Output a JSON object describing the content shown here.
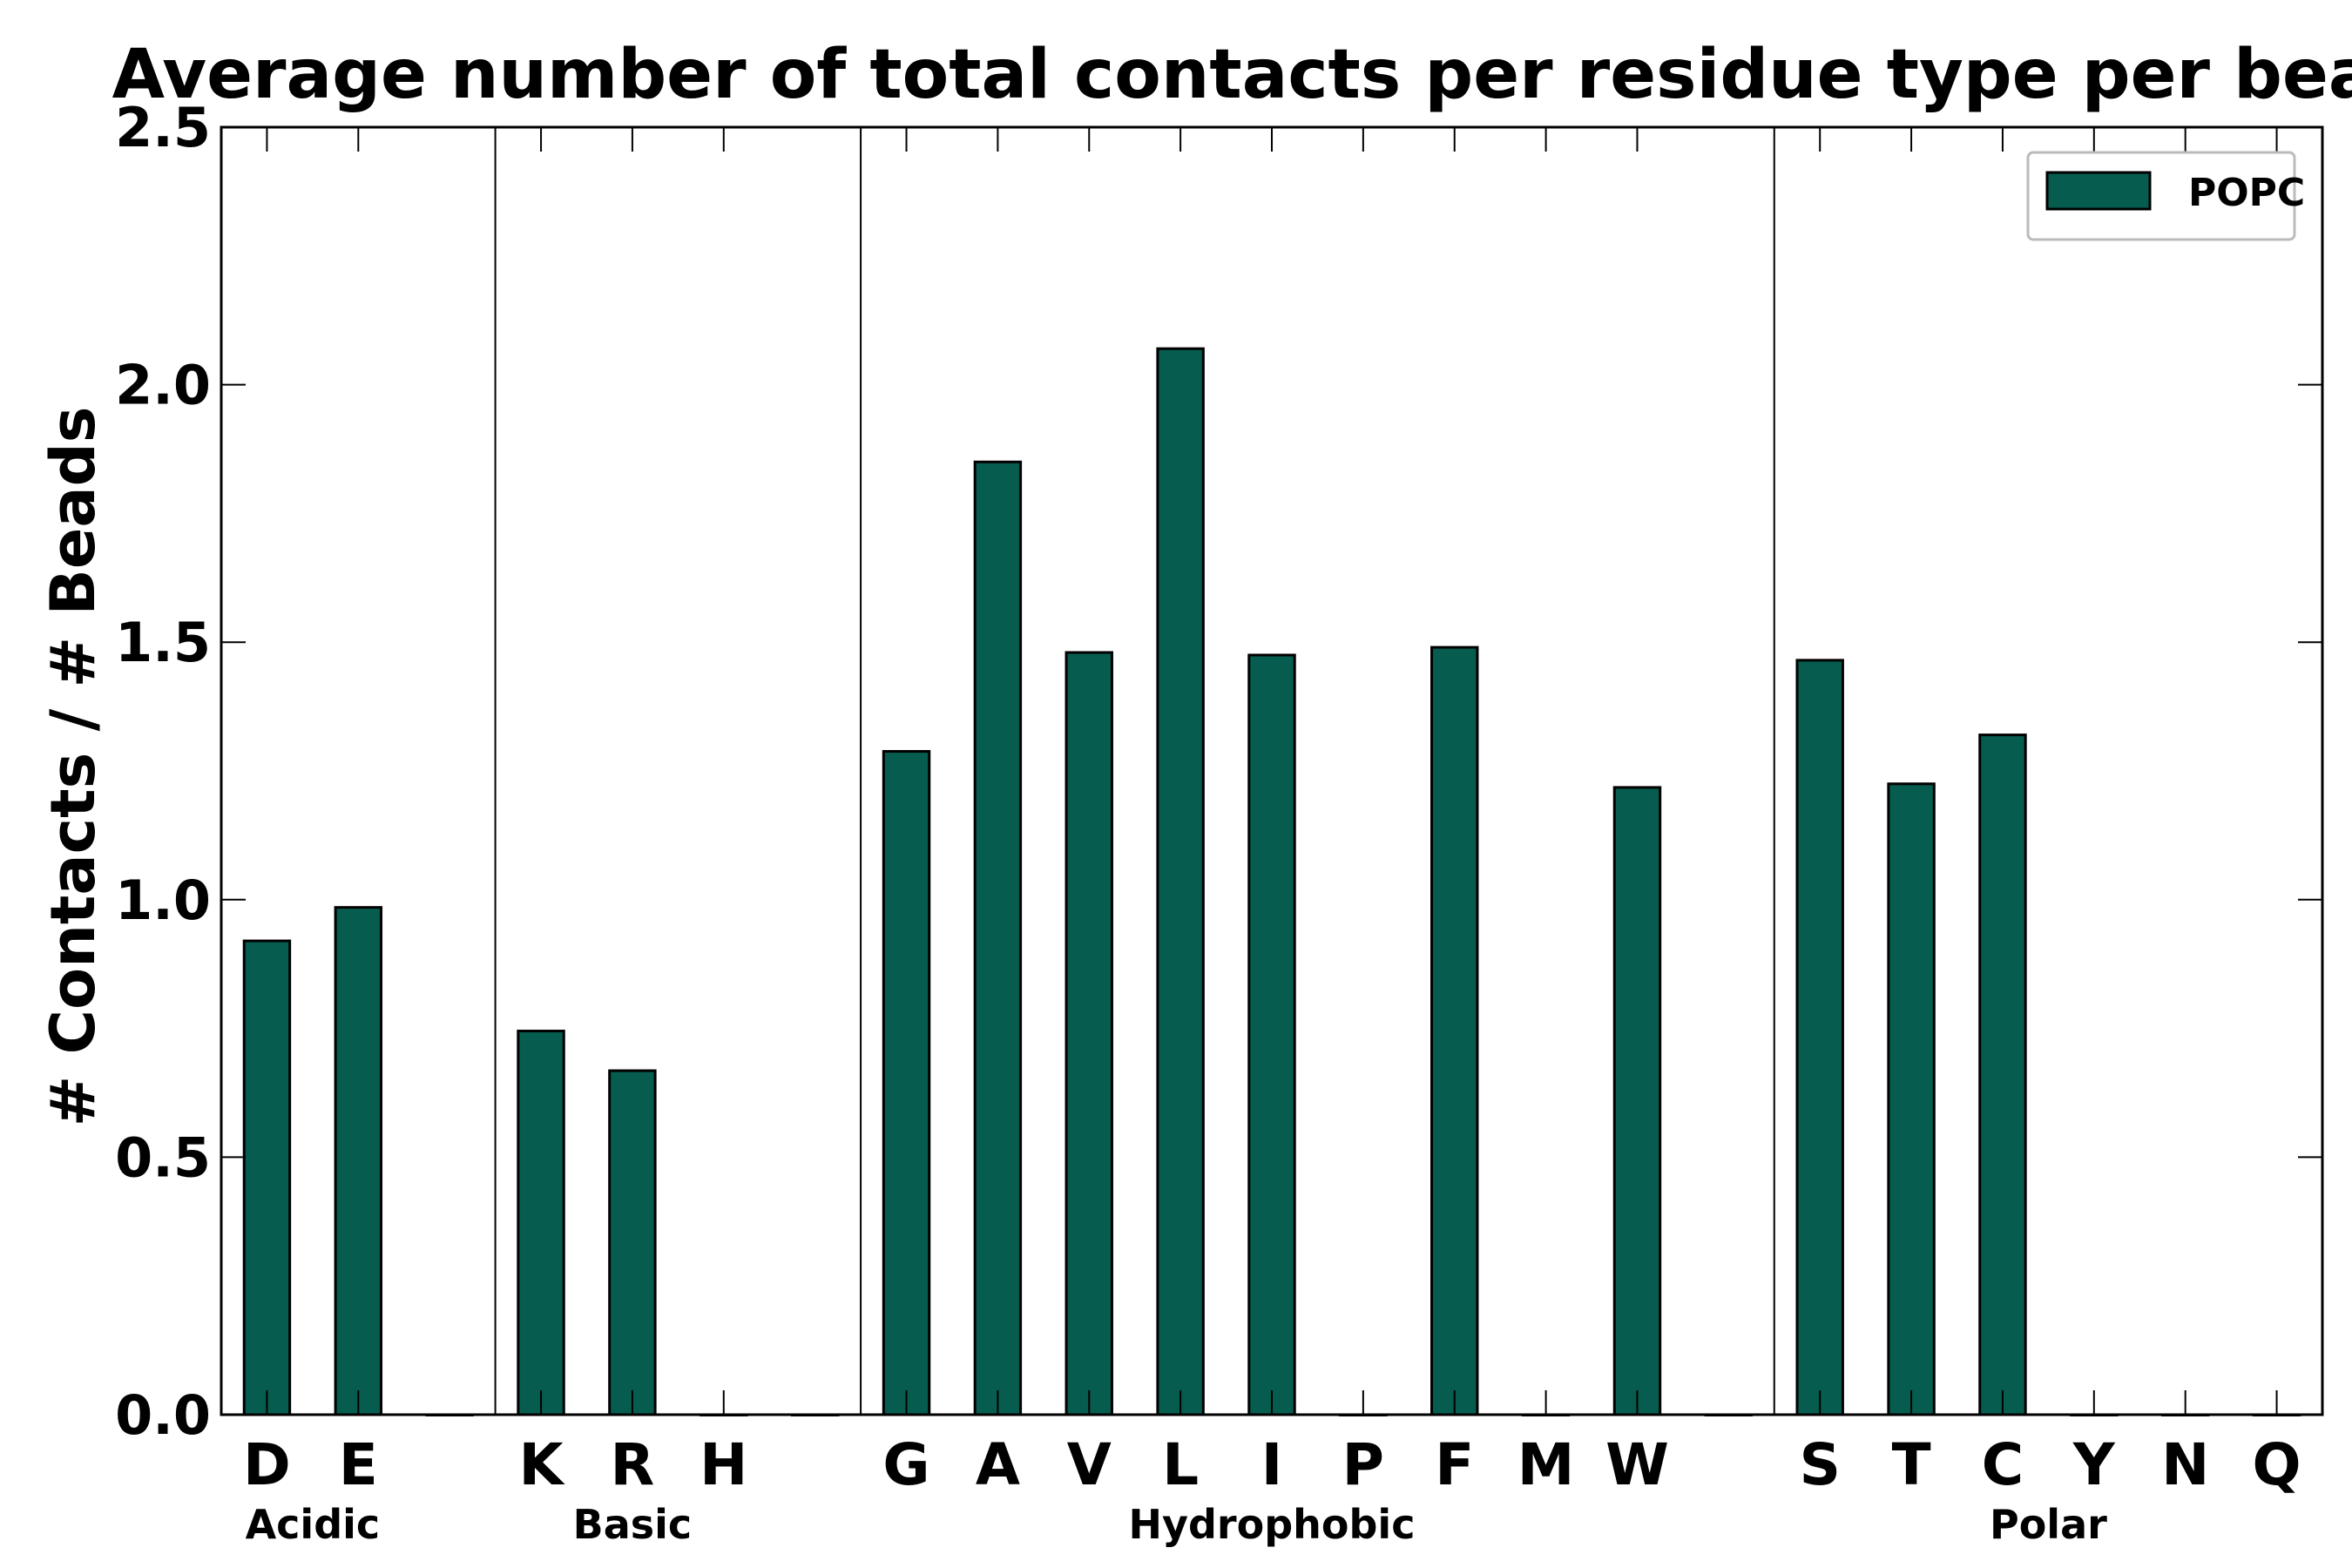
{
  "chart_data": {
    "type": "bar",
    "title": "Average number of total contacts per residue type per bead",
    "ylabel": "# Contacts / # Beads",
    "xlabel": "",
    "ylim": [
      0,
      2.5
    ],
    "yticks": [
      "0.0",
      "0.5",
      "1.0",
      "1.5",
      "2.0",
      "2.5"
    ],
    "categories": [
      "D",
      "E",
      "",
      "K",
      "R",
      "H",
      "",
      "G",
      "A",
      "V",
      "L",
      "I",
      "P",
      "F",
      "M",
      "W",
      "",
      "S",
      "T",
      "C",
      "Y",
      "N",
      "Q"
    ],
    "series": [
      {
        "name": "POPC",
        "color": "#065c4e",
        "values": [
          0.92,
          0.985,
          0,
          0.745,
          0.668,
          0,
          0,
          1.288,
          1.85,
          1.48,
          2.07,
          1.475,
          0,
          1.49,
          0,
          1.218,
          0,
          1.465,
          1.225,
          1.32,
          0,
          0,
          0
        ]
      }
    ],
    "groups": [
      {
        "label": "Acidic",
        "start": 0,
        "end": 1
      },
      {
        "label": "Basic",
        "start": 3,
        "end": 5
      },
      {
        "label": "Hydrophobic",
        "start": 7,
        "end": 15
      },
      {
        "label": "Polar",
        "start": 17,
        "end": 22
      }
    ],
    "separators_after": [
      2,
      6,
      16
    ],
    "legend": {
      "position": "top-right",
      "entries": [
        "POPC"
      ]
    },
    "grid": false
  }
}
